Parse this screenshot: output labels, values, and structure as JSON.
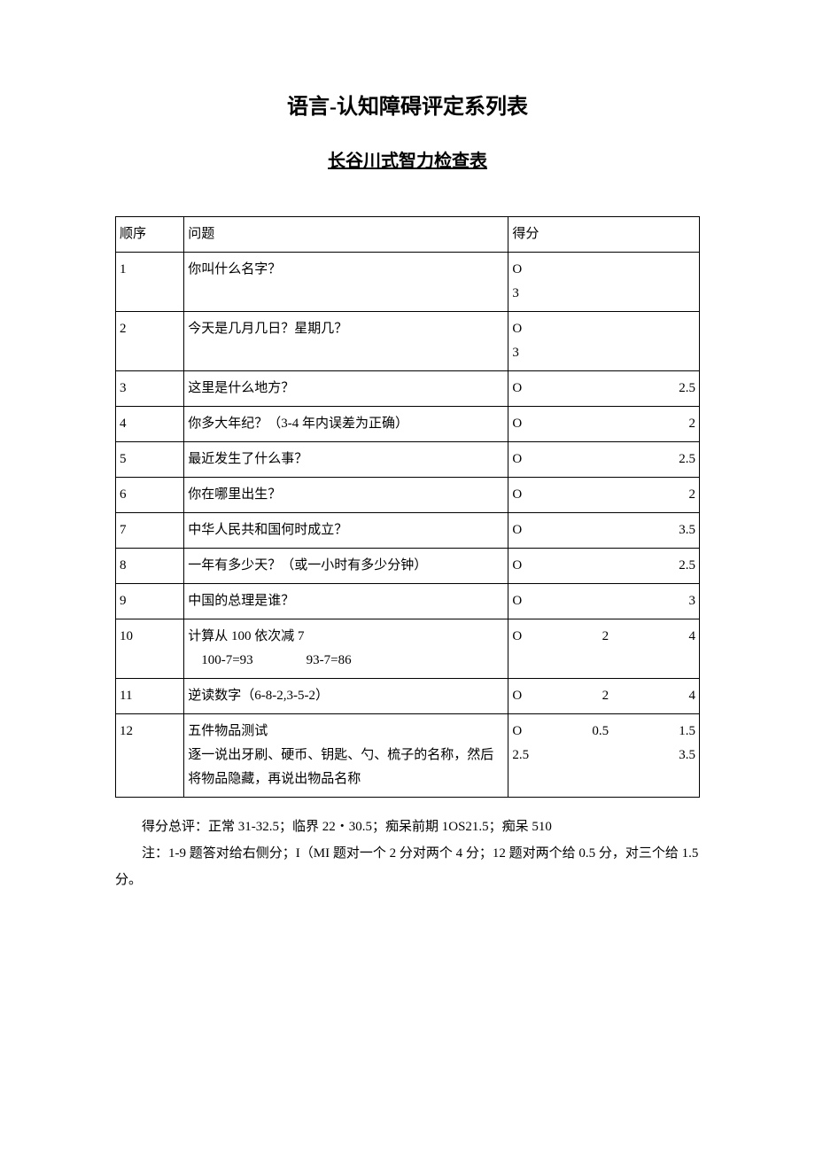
{
  "title": "语言-认知障碍评定系列表",
  "subtitle": "长谷川式智力检查表",
  "headers": {
    "seq": "顺序",
    "question": "问题",
    "score": "得分"
  },
  "rows": [
    {
      "seq": "1",
      "question": "你叫什么名字？",
      "score_lines": [
        {
          "left": "O",
          "mid": "",
          "right": ""
        },
        {
          "left": "3",
          "mid": "",
          "right": ""
        }
      ]
    },
    {
      "seq": "2",
      "question": "今天是几月几日？星期几？",
      "score_lines": [
        {
          "left": "O",
          "mid": "",
          "right": ""
        },
        {
          "left": "3",
          "mid": "",
          "right": ""
        }
      ]
    },
    {
      "seq": "3",
      "question": "这里是什么地方？",
      "score_lines": [
        {
          "left": "O",
          "mid": "",
          "right": "2.5"
        }
      ]
    },
    {
      "seq": "4",
      "question": "你多大年纪？（3-4 年内误差为正确）",
      "score_lines": [
        {
          "left": "O",
          "mid": "",
          "right": "2"
        }
      ]
    },
    {
      "seq": "5",
      "question": "最近发生了什么事？",
      "score_lines": [
        {
          "left": "O",
          "mid": "",
          "right": "2.5"
        }
      ]
    },
    {
      "seq": "6",
      "question": "你在哪里出生？",
      "score_lines": [
        {
          "left": "O",
          "mid": "",
          "right": "2"
        }
      ]
    },
    {
      "seq": "7",
      "question": "中华人民共和国何时成立？",
      "score_lines": [
        {
          "left": "O",
          "mid": "",
          "right": "3.5"
        }
      ]
    },
    {
      "seq": "8",
      "question": "一年有多少天？（或一小时有多少分钟）",
      "score_lines": [
        {
          "left": "O",
          "mid": "",
          "right": "2.5"
        }
      ]
    },
    {
      "seq": "9",
      "question": "中国的总理是谁？",
      "score_lines": [
        {
          "left": "O",
          "mid": "",
          "right": "3"
        }
      ]
    },
    {
      "seq": "10",
      "question_lines": [
        "计算从 100 依次减 7",
        "　100-7=93　　　　93-7=86"
      ],
      "score_lines": [
        {
          "left": "O",
          "mid": "2",
          "right": "4"
        }
      ]
    },
    {
      "seq": "11",
      "question": "逆读数字（6-8-2,3-5-2）",
      "score_lines": [
        {
          "left": "O",
          "mid": "2",
          "right": "4"
        }
      ]
    },
    {
      "seq": "12",
      "question_lines": [
        "五件物品测试",
        "逐一说出牙刷、硬币、钥匙、勺、梳子的名称，然后将物品隐藏，再说出物品名称"
      ],
      "score_lines": [
        {
          "left": "O",
          "mid": "0.5",
          "right": "1.5"
        },
        {
          "left": "2.5",
          "mid": "",
          "right": "3.5"
        }
      ]
    }
  ],
  "notes": [
    "得分总评：正常 31-32.5；临界 22・30.5；痴呆前期 1OS21.5；痴呆 510",
    "注：1-9 题答对给右侧分；I（MI 题对一个 2 分对两个 4 分；12 题对两个给 0.5 分，对三个给 1.5 分。"
  ]
}
